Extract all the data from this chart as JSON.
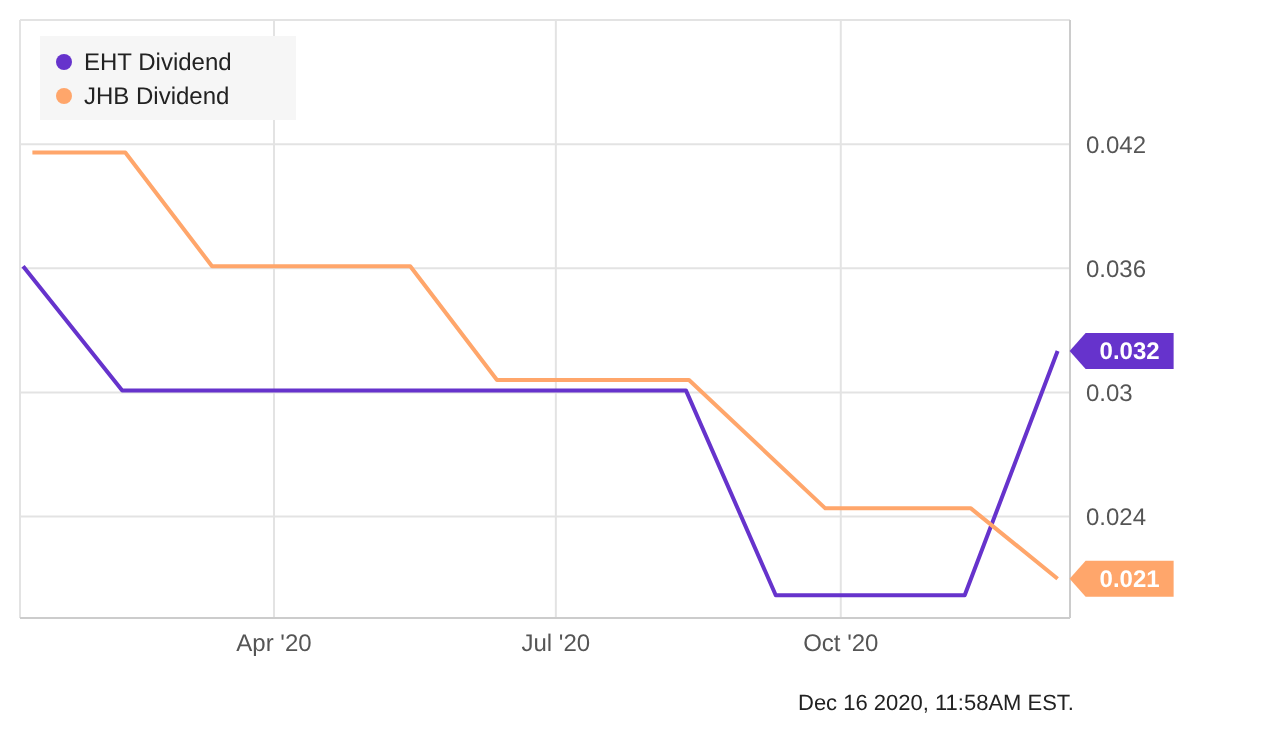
{
  "chart_data": {
    "type": "line",
    "series": [
      {
        "name": "EHT Dividend",
        "color": "#6633cc",
        "x": [
          "2020-01-11",
          "2020-02-12",
          "2020-08-12",
          "2020-09-10",
          "2020-11-10",
          "2020-12-10"
        ],
        "values": [
          0.0361,
          0.0301,
          0.0301,
          0.0202,
          0.0202,
          0.032
        ],
        "value_labels": [
          null,
          null,
          null,
          null,
          null,
          "0.032"
        ]
      },
      {
        "name": "JHB Dividend",
        "color": "#ffa66b",
        "x": [
          "2020-01-14",
          "2020-02-13",
          "2020-03-12",
          "2020-05-15",
          "2020-06-12",
          "2020-08-13",
          "2020-09-26",
          "2020-11-12",
          "2020-12-10"
        ],
        "values": [
          0.0416,
          0.0416,
          0.0361,
          0.0361,
          0.0306,
          0.0306,
          0.0244,
          0.0244,
          0.021
        ],
        "value_labels": [
          null,
          null,
          null,
          null,
          null,
          null,
          null,
          null,
          "0.021"
        ]
      }
    ],
    "xlim": [
      "2020-01-10",
      "2020-12-14"
    ],
    "xticks": [
      {
        "value": "2020-04-01",
        "label": "Apr '20"
      },
      {
        "value": "2020-07-01",
        "label": "Jul '20"
      },
      {
        "value": "2020-10-01",
        "label": "Oct '20"
      }
    ],
    "ylim": [
      0.0191,
      0.048
    ],
    "yticks": [
      0.024,
      0.03,
      0.036,
      0.042
    ],
    "grid": true,
    "legend": "top left",
    "marker": "none",
    "line_style": "solid",
    "annotations": [
      "Dec 16 2020, 11:58AM EST."
    ]
  }
}
